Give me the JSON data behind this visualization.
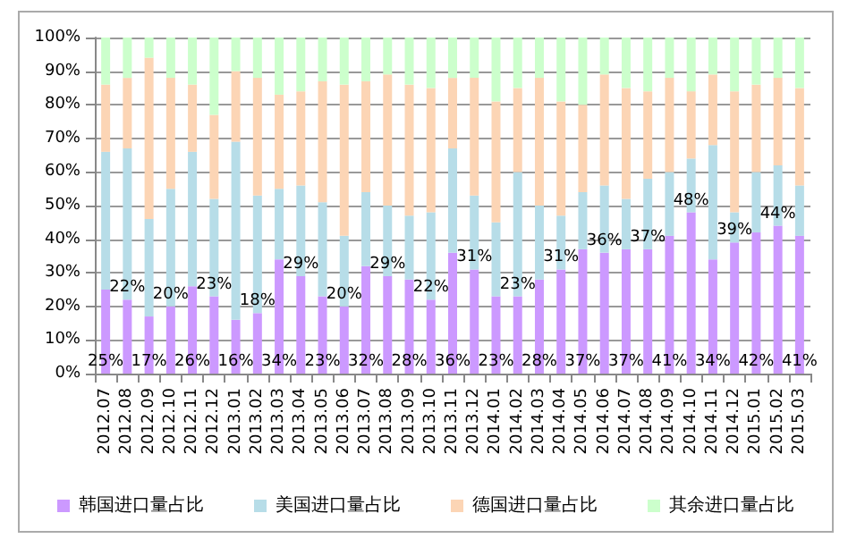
{
  "chart_data": {
    "type": "bar",
    "stacked": true,
    "categories": [
      "2012.07",
      "2012.08",
      "2012.09",
      "2012.10",
      "2012.11",
      "2012.12",
      "2013.01",
      "2013.02",
      "2013.03",
      "2013.04",
      "2013.05",
      "2013.06",
      "2013.07",
      "2013.08",
      "2013.09",
      "2013.10",
      "2013.11",
      "2013.12",
      "2014.01",
      "2014.02",
      "2014.03",
      "2014.04",
      "2014.05",
      "2014.06",
      "2014.07",
      "2014.08",
      "2014.09",
      "2014.10",
      "2014.11",
      "2014.12",
      "2015.01",
      "2015.02",
      "2015.03"
    ],
    "series": [
      {
        "name": "韩国进口量占比",
        "color": "#cc99ff",
        "values": [
          25,
          22,
          17,
          20,
          26,
          23,
          16,
          18,
          34,
          29,
          23,
          20,
          32,
          29,
          28,
          22,
          36,
          31,
          23,
          23,
          28,
          31,
          37,
          36,
          37,
          37,
          41,
          48,
          34,
          39,
          42,
          44,
          41
        ],
        "value_labels": [
          "25%",
          "22%",
          "17%",
          "20%",
          "26%",
          "23%",
          "16%",
          "18%",
          "34%",
          "29%",
          "23%",
          "20%",
          "32%",
          "29%",
          "28%",
          "22%",
          "36%",
          "31%",
          "23%",
          "23%",
          "28%",
          "31%",
          "37%",
          "36%",
          "37%",
          "37%",
          "41%",
          "48%",
          "34%",
          "39%",
          "42%",
          "44%",
          "41%"
        ]
      },
      {
        "name": "美国进口量占比",
        "color": "#b7dde8",
        "values": [
          41,
          45,
          29,
          35,
          40,
          29,
          53,
          35,
          21,
          27,
          28,
          21,
          22,
          21,
          19,
          26,
          31,
          22,
          22,
          37,
          22,
          16,
          17,
          20,
          15,
          21,
          19,
          16,
          34,
          9,
          18,
          18,
          15
        ]
      },
      {
        "name": "德国进口量占比",
        "color": "#fcd5b5",
        "values": [
          20,
          21,
          48,
          33,
          20,
          25,
          21,
          35,
          28,
          28,
          36,
          45,
          33,
          39,
          39,
          37,
          21,
          35,
          36,
          25,
          38,
          34,
          26,
          33,
          33,
          26,
          28,
          20,
          21,
          36,
          26,
          26,
          29
        ]
      },
      {
        "name": "其余进口量占比",
        "color": "#ccffcc",
        "values": [
          14,
          12,
          6,
          12,
          14,
          23,
          10,
          12,
          17,
          16,
          13,
          14,
          13,
          11,
          14,
          15,
          12,
          12,
          19,
          15,
          12,
          19,
          20,
          11,
          15,
          16,
          12,
          16,
          11,
          16,
          14,
          12,
          15
        ]
      }
    ],
    "ylim": [
      0,
      100
    ],
    "yticks": [
      {
        "value": 0,
        "label": "0%"
      },
      {
        "value": 10,
        "label": "10%"
      },
      {
        "value": 20,
        "label": "20%"
      },
      {
        "value": 30,
        "label": "30%"
      },
      {
        "value": 40,
        "label": "40%"
      },
      {
        "value": 50,
        "label": "50%"
      },
      {
        "value": 60,
        "label": "60%"
      },
      {
        "value": 70,
        "label": "70%"
      },
      {
        "value": 80,
        "label": "80%"
      },
      {
        "value": 90,
        "label": "90%"
      },
      {
        "value": 100,
        "label": "100%"
      }
    ],
    "grid": "y",
    "legend": "bottom"
  }
}
